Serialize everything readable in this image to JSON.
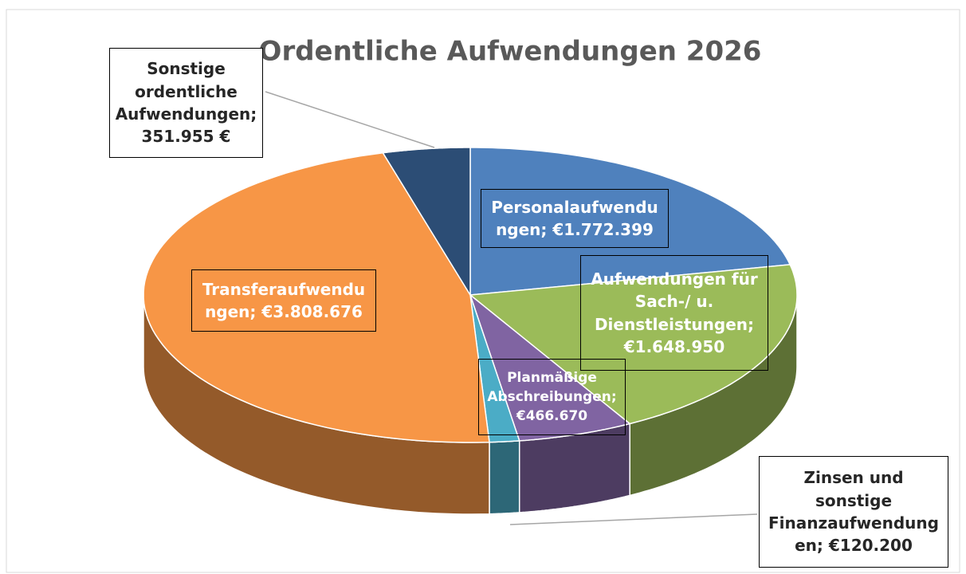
{
  "chart_data": {
    "type": "pie3d",
    "title": "Ordentliche Aufwendungen 2026",
    "categories": [
      "Personalaufwendungen",
      "Aufwendungen für Sach-/ u. Dienstleistungen",
      "Planmäßige Abschreibungen",
      "Zinsen und sonstige Finanzaufwendungen",
      "Transferaufwendungen",
      "Sonstige ordentliche Aufwendungen"
    ],
    "values": [
      1772399,
      1648950,
      466670,
      120200,
      3808676,
      351955
    ],
    "value_labels": [
      "€1.772.399",
      "€1.648.950",
      "€466.670",
      "€120.200",
      "€3.808.676",
      "351.955 €"
    ],
    "label_separator": "; ",
    "colors": [
      "#4f81bd",
      "#9bbb59",
      "#8064a2",
      "#4bacc6",
      "#f79646",
      "#2c4d75"
    ]
  }
}
